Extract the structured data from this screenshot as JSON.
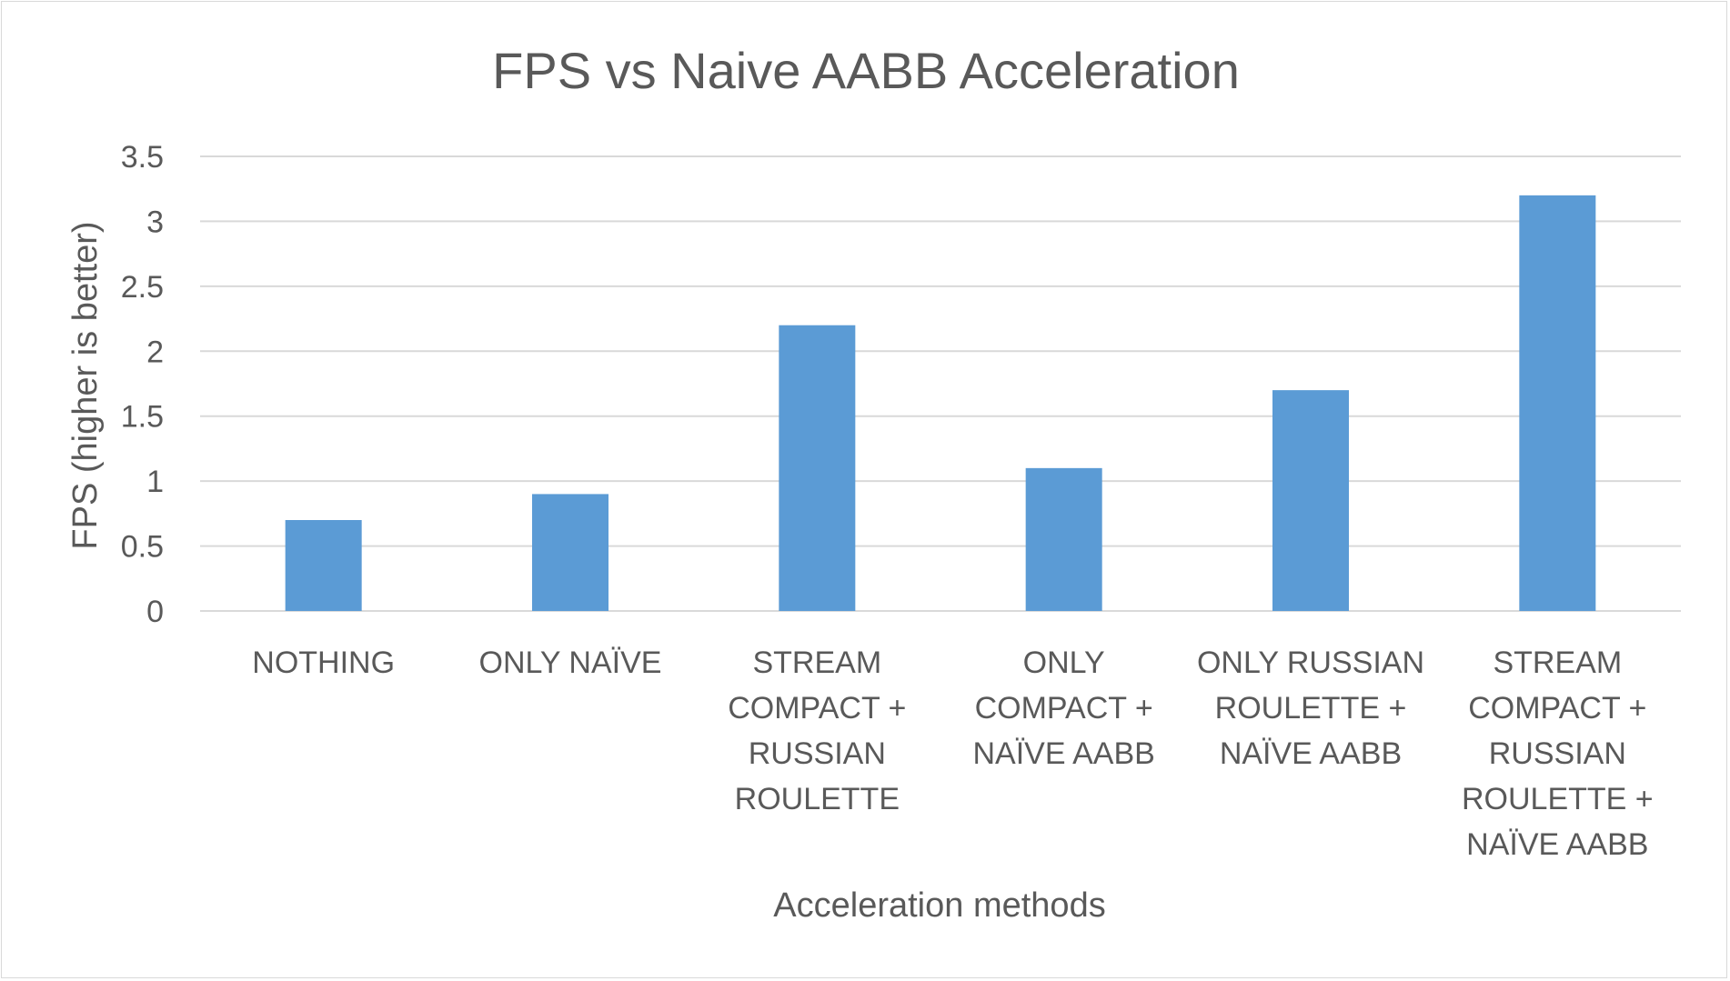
{
  "chart_data": {
    "type": "bar",
    "title": "FPS vs Naive AABB Acceleration",
    "xlabel": "Acceleration methods",
    "ylabel": "FPS (higher is better)",
    "categories": [
      [
        "NOTHING"
      ],
      [
        "ONLY NAÏVE"
      ],
      [
        "STREAM",
        "COMPACT +",
        "RUSSIAN",
        "ROULETTE"
      ],
      [
        "ONLY",
        "COMPACT +",
        "NAÏVE AABB"
      ],
      [
        "ONLY RUSSIAN",
        "ROULETTE +",
        "NAÏVE AABB"
      ],
      [
        "STREAM",
        "COMPACT +",
        "RUSSIAN",
        "ROULETTE +",
        "NAÏVE AABB"
      ]
    ],
    "series": [
      {
        "values": [
          0.7,
          0.9,
          2.2,
          1.1,
          1.7,
          3.2
        ]
      }
    ],
    "yticks": [
      "0",
      "0.5",
      "1",
      "1.5",
      "2",
      "2.5",
      "3",
      "3.5"
    ],
    "ylim": [
      0,
      3.5
    ],
    "grid": true,
    "legend": "none",
    "colors": {
      "bar": "#5b9bd5",
      "grid": "#d9d9d9",
      "text": "#595959"
    }
  }
}
